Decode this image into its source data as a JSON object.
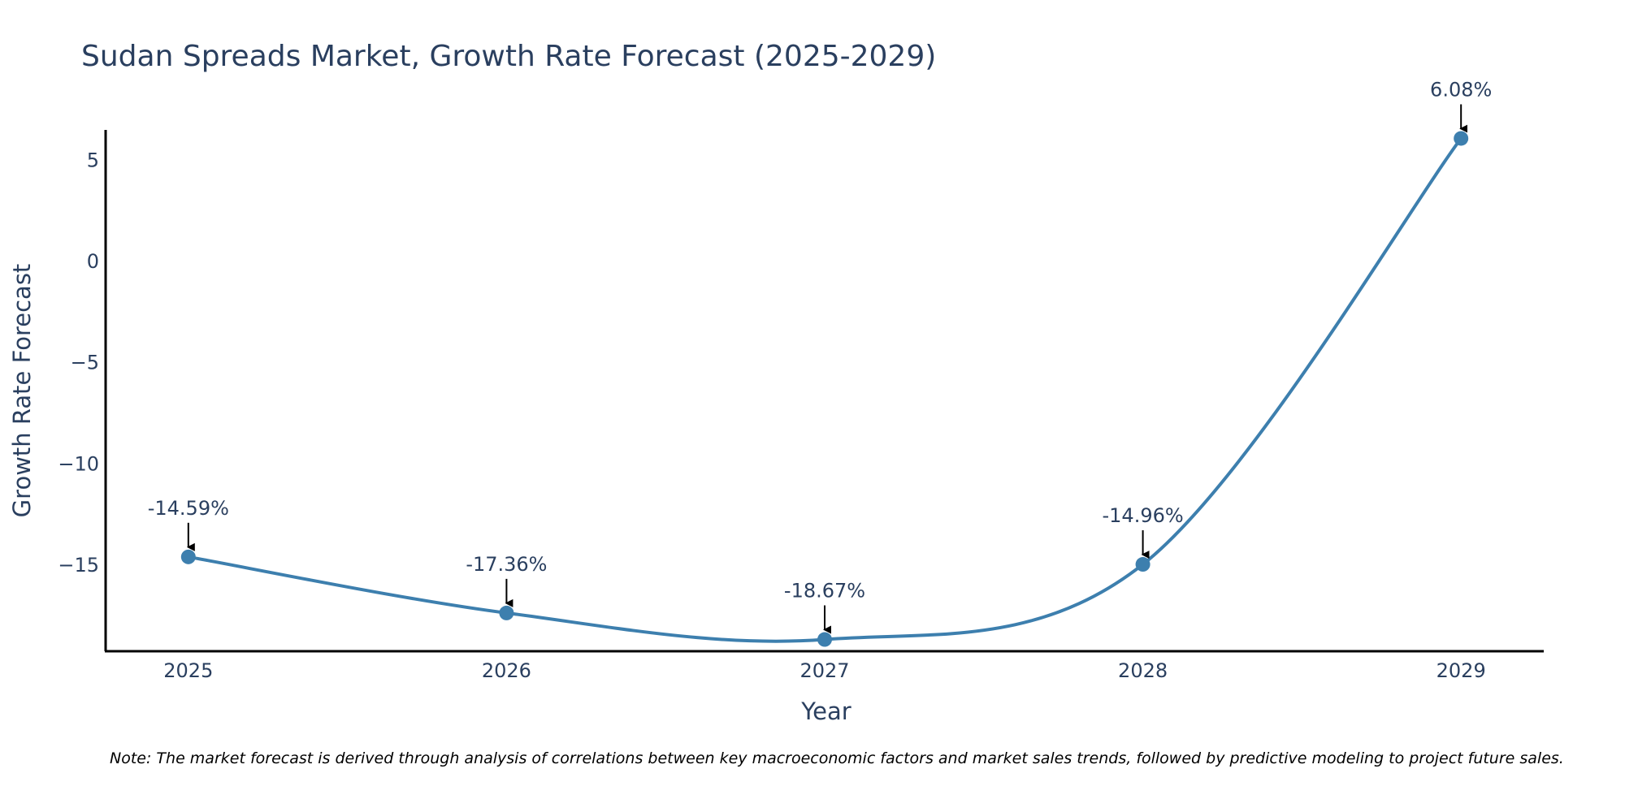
{
  "chart_data": {
    "type": "line",
    "title": "Sudan Spreads Market, Growth Rate Forecast (2025-2029)",
    "xlabel": "Year",
    "ylabel": "Growth Rate Forecast",
    "categories": [
      "2025",
      "2026",
      "2027",
      "2028",
      "2029"
    ],
    "series": [
      {
        "name": "Growth Rate Forecast",
        "values": [
          -14.59,
          -17.36,
          -18.67,
          -14.96,
          6.08
        ],
        "labels": [
          "-14.59%",
          "-17.36%",
          "-18.67%",
          "-14.96%",
          "6.08%"
        ]
      }
    ],
    "yticks": [
      5,
      0,
      -5,
      -10,
      -15
    ],
    "ytick_labels": [
      "5",
      "0",
      "−5",
      "−10",
      "−15"
    ],
    "xlim": [
      -0.26,
      4.26
    ],
    "ylim": [
      -19.25,
      6.5
    ],
    "line_color": "#3d7fae",
    "marker_color": "#3d7fae",
    "note": "Note: The market forecast is derived through analysis of correlations between key macroeconomic factors and market sales trends, followed by predictive modeling to project future sales."
  }
}
